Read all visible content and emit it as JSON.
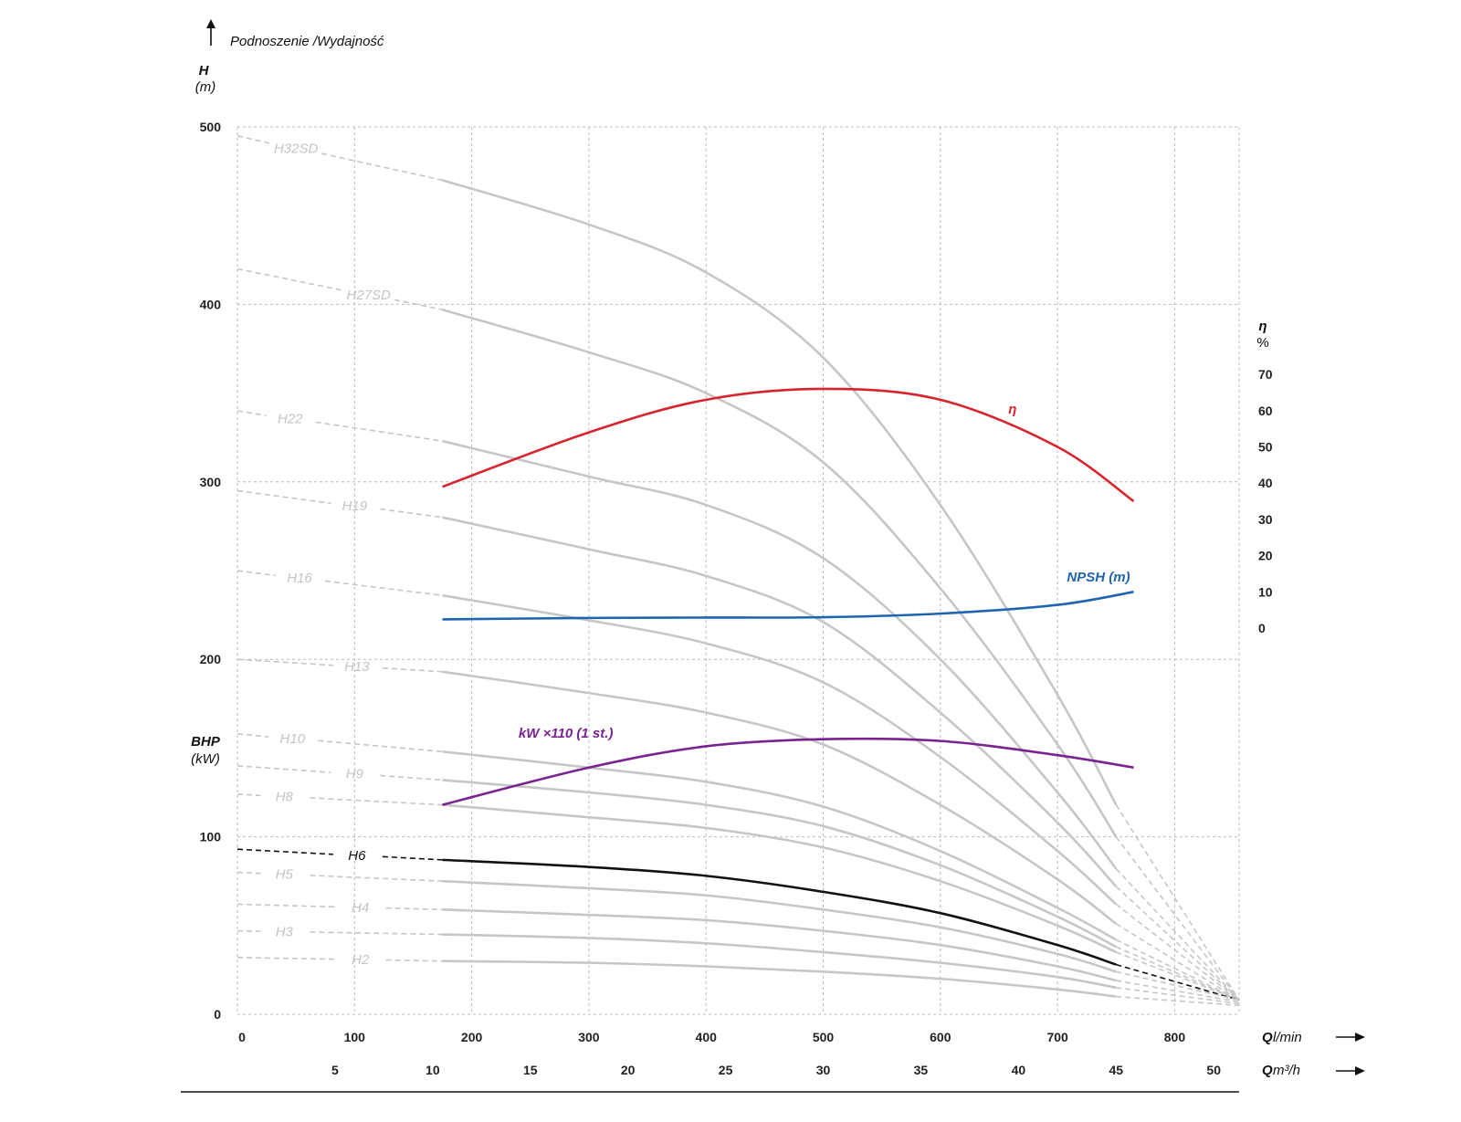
{
  "chart_data": {
    "type": "line",
    "title": "Podnoszenie /Wydajność",
    "y_axis": {
      "label": "H",
      "unit": "(m)",
      "range": [
        0,
        500
      ],
      "ticks": [
        "0",
        "100",
        "200",
        "300",
        "400",
        "500"
      ]
    },
    "bhp_axis": {
      "label": "BHP",
      "unit": "(kW)"
    },
    "eff_axis": {
      "label": "η",
      "unit": "%",
      "ticks": [
        "0",
        "10",
        "20",
        "30",
        "40",
        "50",
        "60",
        "70"
      ]
    },
    "x_axis": {
      "label_q": "Q",
      "unit_lmin": "l/min",
      "unit_m3h": "m³/h",
      "range": [
        0,
        855
      ],
      "ticks_lmin": [
        "0",
        "100",
        "200",
        "300",
        "400",
        "500",
        "600",
        "700",
        "800"
      ],
      "ticks_m3h": [
        "5",
        "10",
        "15",
        "20",
        "25",
        "30",
        "35",
        "40",
        "45",
        "50"
      ]
    },
    "grid": true,
    "series": [
      {
        "name": "H32SD",
        "shutoff": 495,
        "x": [
          175,
          300,
          400,
          500,
          600,
          700,
          750
        ],
        "y": [
          470,
          445,
          418,
          370,
          287,
          180,
          118
        ],
        "end": 8
      },
      {
        "name": "H27SD",
        "shutoff": 420,
        "x": [
          175,
          300,
          400,
          500,
          600,
          700,
          750
        ],
        "y": [
          397,
          373,
          350,
          311,
          240,
          152,
          100
        ],
        "end": 8
      },
      {
        "name": "H22",
        "shutoff": 340,
        "x": [
          175,
          300,
          400,
          500,
          600,
          700,
          750
        ],
        "y": [
          323,
          303,
          287,
          257,
          200,
          125,
          82
        ],
        "end": 8
      },
      {
        "name": "H19",
        "shutoff": 295,
        "x": [
          175,
          300,
          400,
          500,
          600,
          700,
          750
        ],
        "y": [
          280,
          262,
          247,
          221,
          170,
          108,
          72
        ],
        "end": 8
      },
      {
        "name": "H16",
        "shutoff": 250,
        "x": [
          175,
          300,
          400,
          500,
          600,
          700,
          750
        ],
        "y": [
          236,
          222,
          209,
          187,
          145,
          92,
          62
        ],
        "end": 8
      },
      {
        "name": "H13",
        "shutoff": 200,
        "x": [
          175,
          300,
          400,
          500,
          600,
          700,
          750
        ],
        "y": [
          193,
          181,
          170,
          152,
          118,
          76,
          51
        ],
        "end": 8
      },
      {
        "name": "H10",
        "shutoff": 158,
        "x": [
          175,
          300,
          400,
          500,
          600,
          700,
          750
        ],
        "y": [
          148,
          139,
          131,
          117,
          92,
          60,
          42
        ],
        "end": 8
      },
      {
        "name": "H9",
        "shutoff": 140,
        "x": [
          175,
          300,
          400,
          500,
          600,
          700,
          750
        ],
        "y": [
          132,
          125,
          118,
          106,
          84,
          55,
          38
        ],
        "end": 8
      },
      {
        "name": "H8",
        "shutoff": 124,
        "x": [
          175,
          300,
          400,
          500,
          600,
          700,
          750
        ],
        "y": [
          118,
          111,
          105,
          94,
          75,
          50,
          35
        ],
        "end": 8
      },
      {
        "name": "H6",
        "shutoff": 93,
        "x": [
          175,
          300,
          400,
          500,
          600,
          700,
          750
        ],
        "y": [
          87,
          83,
          78,
          69,
          57,
          39,
          28
        ],
        "end": 8
      },
      {
        "name": "H5",
        "shutoff": 80,
        "x": [
          175,
          300,
          400,
          500,
          600,
          700,
          750
        ],
        "y": [
          75,
          71,
          67,
          59,
          49,
          34,
          24
        ],
        "end": 8
      },
      {
        "name": "H4",
        "shutoff": 62,
        "x": [
          175,
          300,
          400,
          500,
          600,
          700,
          750
        ],
        "y": [
          59,
          56,
          53,
          47,
          39,
          27,
          19
        ],
        "end": 7
      },
      {
        "name": "H3",
        "shutoff": 47,
        "x": [
          175,
          300,
          400,
          500,
          600,
          700,
          750
        ],
        "y": [
          45,
          43,
          40,
          35,
          29,
          21,
          15
        ],
        "end": 6
      },
      {
        "name": "H2",
        "shutoff": 32,
        "x": [
          175,
          300,
          400,
          500,
          600,
          700,
          750
        ],
        "y": [
          30,
          29,
          27,
          24,
          20,
          14,
          10
        ],
        "end": 5
      }
    ],
    "efficiency": {
      "name": "η",
      "x": [
        175,
        300,
        400,
        500,
        600,
        700,
        765
      ],
      "y": [
        39,
        54,
        63,
        66,
        63,
        50,
        35
      ]
    },
    "npsh": {
      "name": "NPSH (m)",
      "x": [
        175,
        300,
        400,
        500,
        600,
        700,
        765
      ],
      "y": [
        2.4,
        2.8,
        2.9,
        3.0,
        4.0,
        6.4,
        10.0
      ]
    },
    "power": {
      "name": "kW ×110 (1 st.)",
      "x": [
        175,
        300,
        400,
        500,
        600,
        700,
        765
      ],
      "y": [
        118,
        139,
        151,
        155,
        154,
        146,
        139
      ]
    },
    "colors": {
      "grid": "#bbbbbb",
      "curves": "#c6c6c6",
      "highlight": "#111111",
      "eta": "#d7242d",
      "npsh": "#1f64b0",
      "power": "#7a2390"
    }
  }
}
